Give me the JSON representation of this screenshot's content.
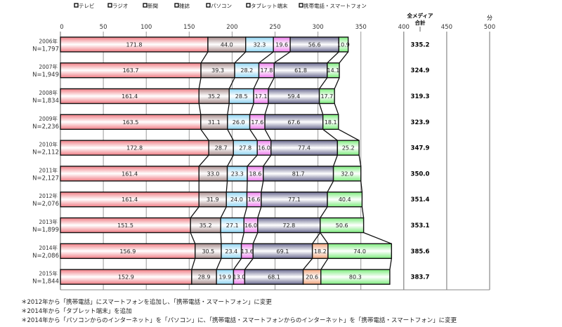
{
  "chart_data": {
    "type": "bar",
    "orientation": "horizontal-stacked",
    "legend_position": "top",
    "xlim": [
      0,
      500
    ],
    "x_ticks": [
      "0",
      "50",
      "100",
      "150",
      "200",
      "250",
      "300",
      "350",
      "400",
      "450",
      "500"
    ],
    "x_unit": "分",
    "total_header": [
      "全メディア",
      "合計"
    ],
    "series_names": [
      "テレビ",
      "ラジオ",
      "新聞",
      "雑誌",
      "パソコン",
      "タブレット端末",
      "携帯電話・スマートフォン"
    ],
    "series_colors": [
      "#f07c84",
      "#a88c8c",
      "#8fd4f2",
      "#ec7cec",
      "#6a6a90",
      "#f0a47c",
      "#7cec7c"
    ],
    "categories": [
      {
        "year": "2006年",
        "n": "N=1,797"
      },
      {
        "year": "2007年",
        "n": "N=1,949"
      },
      {
        "year": "2008年",
        "n": "N=1,834"
      },
      {
        "year": "2009年",
        "n": "N=2,236"
      },
      {
        "year": "2010年",
        "n": "N=2,112"
      },
      {
        "year": "2011年",
        "n": "N=2,127"
      },
      {
        "year": "2012年",
        "n": "N=2,076"
      },
      {
        "year": "2013年",
        "n": "N=1,899"
      },
      {
        "year": "2014年",
        "n": "N=2,086"
      },
      {
        "year": "2015年",
        "n": "N=1,844"
      }
    ],
    "values": [
      [
        171.8,
        44.0,
        32.3,
        19.6,
        56.6,
        null,
        10.9
      ],
      [
        163.7,
        39.3,
        28.2,
        17.8,
        61.8,
        null,
        14.1
      ],
      [
        161.4,
        35.2,
        28.5,
        17.1,
        59.4,
        null,
        17.7
      ],
      [
        163.5,
        31.1,
        26.0,
        17.6,
        67.6,
        null,
        18.1
      ],
      [
        172.8,
        28.7,
        27.8,
        16.0,
        77.4,
        null,
        25.2
      ],
      [
        161.4,
        33.0,
        23.3,
        18.6,
        81.7,
        null,
        32.0
      ],
      [
        161.4,
        31.9,
        24.0,
        16.6,
        77.1,
        null,
        40.4
      ],
      [
        151.5,
        35.2,
        27.1,
        16.0,
        72.8,
        null,
        50.6
      ],
      [
        156.9,
        30.5,
        23.4,
        13.6,
        69.1,
        18.2,
        74.0
      ],
      [
        152.9,
        28.9,
        19.9,
        13.0,
        68.1,
        20.6,
        80.3
      ]
    ],
    "totals": [
      "335.2",
      "324.9",
      "319.3",
      "323.9",
      "347.9",
      "350.0",
      "351.4",
      "353.1",
      "385.6",
      "383.7"
    ]
  },
  "footnotes": [
    "＊2012年から「携帯電話」にスマートフォンを追加し、「携帯電話・スマートフォン」に変更",
    "＊2014年から「タブレット端末」を追加",
    "＊2014年から「パソコンからのインターネット」を「パソコン」に、「携帯電話・スマートフォンからのインターネット」を「携帯電話・スマートフォン」に変更"
  ]
}
